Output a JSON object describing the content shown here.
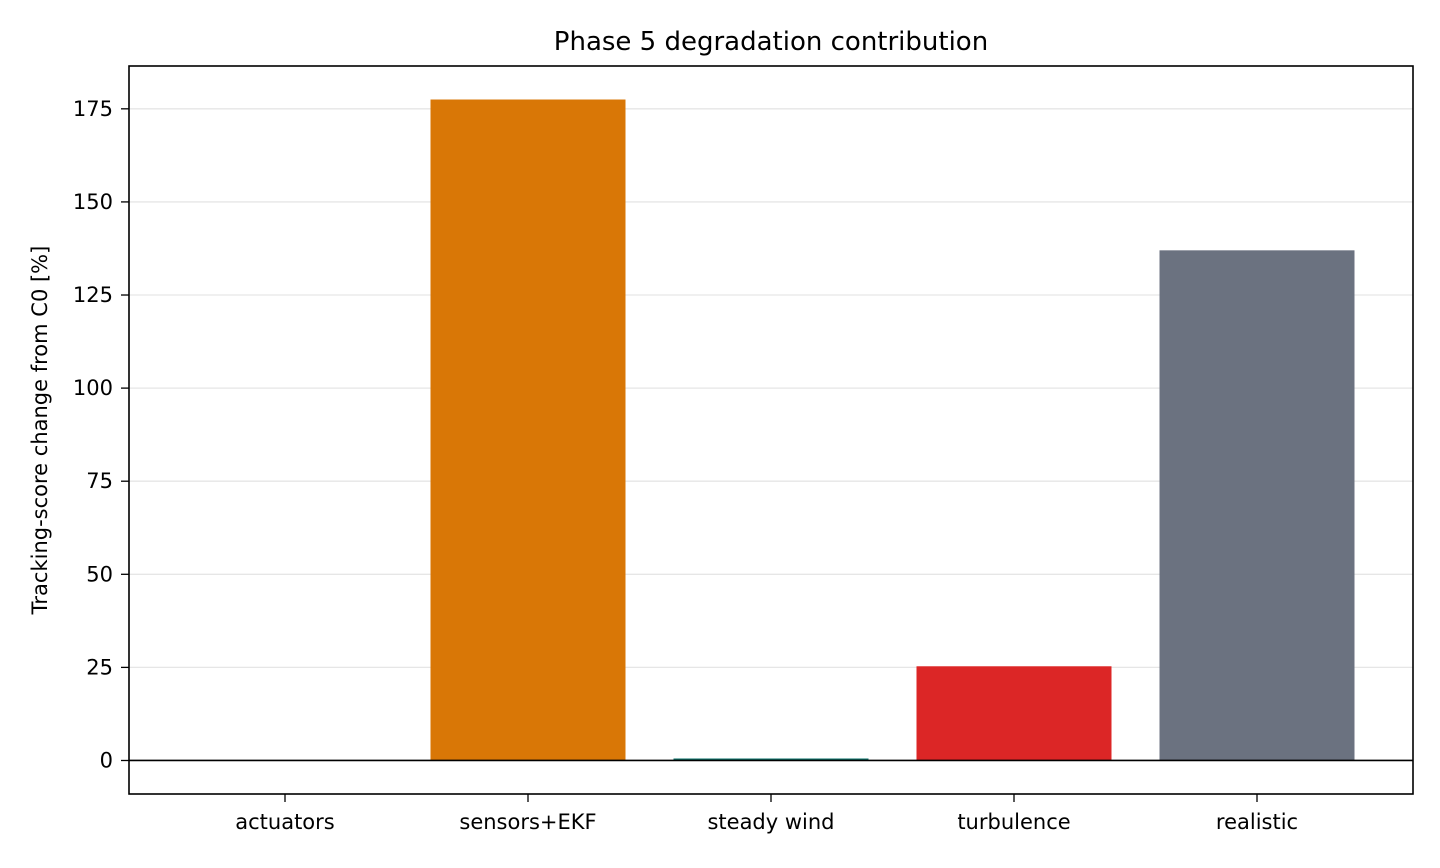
{
  "chart_data": {
    "type": "bar",
    "title": "Phase 5 degradation contribution",
    "xlabel": "",
    "ylabel": "Tracking-score change from C0 [%]",
    "categories": [
      "actuators",
      "sensors+EKF",
      "steady wind",
      "turbulence",
      "realistic"
    ],
    "values": [
      0,
      177.5,
      0.5,
      25.3,
      137.0
    ],
    "colors": [
      "#2563eb",
      "#d97706",
      "#0f766e",
      "#dc2626",
      "#6b7280"
    ],
    "ylim": [
      -9,
      186.5
    ],
    "yticks": [
      0,
      25,
      50,
      75,
      100,
      125,
      150,
      175
    ],
    "grid": "y",
    "legend": "none",
    "zero_line": true
  }
}
